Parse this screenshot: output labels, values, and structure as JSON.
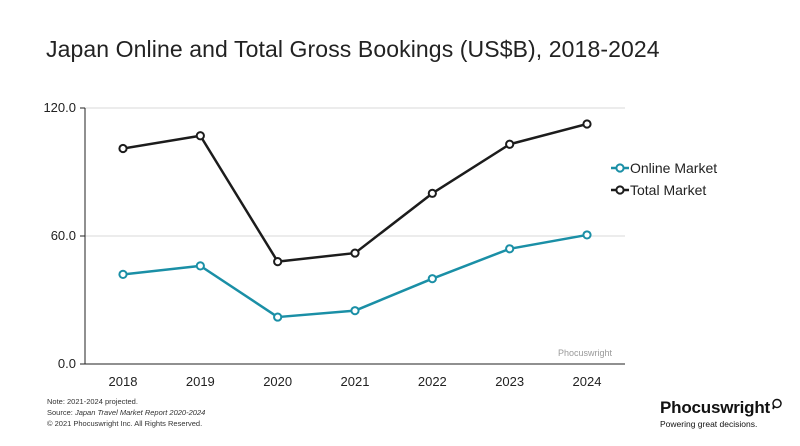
{
  "chart_data": {
    "type": "line",
    "title": "Japan Online and Total Gross Bookings (US$B), 2018-2024",
    "categories": [
      "2018",
      "2019",
      "2020",
      "2021",
      "2022",
      "2023",
      "2024"
    ],
    "series": [
      {
        "name": "Online Market",
        "color": "#1a8fa6",
        "values": [
          42.0,
          46.0,
          22.0,
          25.0,
          40.0,
          54.0,
          60.5
        ]
      },
      {
        "name": "Total Market",
        "color": "#1c1c1c",
        "values": [
          101.0,
          107.0,
          48.0,
          52.0,
          80.0,
          103.0,
          112.5
        ]
      }
    ],
    "ylim": [
      0,
      120
    ],
    "yticks": [
      "0.0",
      "60.0",
      "120.0"
    ],
    "ytick_values": [
      0,
      60,
      120
    ],
    "xlabel": "",
    "ylabel": "",
    "legend_position": "right",
    "watermark": "Phocuswright"
  },
  "footer": {
    "note": "Note: 2021-2024 projected.",
    "source_prefix": "Source: ",
    "source_title": "Japan Travel Market Report 2020-2024",
    "copyright": "© 2021  Phocuswright Inc. All Rights Reserved."
  },
  "brand": {
    "name": "Phocuswright",
    "tagline": "Powering great decisions."
  }
}
